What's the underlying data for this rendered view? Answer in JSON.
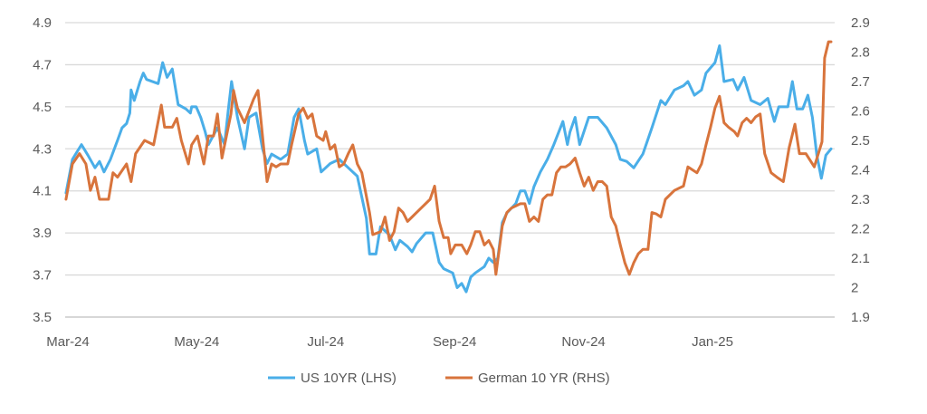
{
  "chart_data": {
    "type": "line",
    "title": "",
    "xlabel": "",
    "x_units": "months since Mar-24",
    "x_tick_labels": [
      "Mar-24",
      "May-24",
      "Jul-24",
      "Sep-24",
      "Nov-24",
      "Jan-25"
    ],
    "x_tick_positions": [
      0,
      2,
      4,
      6,
      8,
      10
    ],
    "y_left": {
      "ticks": [
        "3.5",
        "3.7",
        "3.9",
        "4.1",
        "4.3",
        "4.5",
        "4.7",
        "4.9"
      ],
      "ylim": [
        3.5,
        4.9
      ]
    },
    "y_right": {
      "ticks": [
        "1.9",
        "2",
        "2.1",
        "2.2",
        "2.3",
        "2.4",
        "2.5",
        "2.6",
        "2.7",
        "2.8",
        "2.9"
      ],
      "ylim": [
        1.9,
        2.9
      ]
    },
    "grid": true,
    "legend_position": "bottom",
    "series": [
      {
        "name": "US 10YR (LHS)",
        "axis": "left",
        "color": "#4AAEE8",
        "points": [
          [
            -0.03,
            4.09
          ],
          [
            0.07,
            4.25
          ],
          [
            0.21,
            4.32
          ],
          [
            0.31,
            4.27
          ],
          [
            0.42,
            4.21
          ],
          [
            0.49,
            4.24
          ],
          [
            0.56,
            4.19
          ],
          [
            0.66,
            4.25
          ],
          [
            0.77,
            4.34
          ],
          [
            0.84,
            4.4
          ],
          [
            0.91,
            4.42
          ],
          [
            0.96,
            4.47
          ],
          [
            0.98,
            4.58
          ],
          [
            1.03,
            4.53
          ],
          [
            1.12,
            4.62
          ],
          [
            1.17,
            4.66
          ],
          [
            1.22,
            4.63
          ],
          [
            1.4,
            4.61
          ],
          [
            1.47,
            4.71
          ],
          [
            1.54,
            4.64
          ],
          [
            1.62,
            4.68
          ],
          [
            1.71,
            4.51
          ],
          [
            1.83,
            4.49
          ],
          [
            1.9,
            4.47
          ],
          [
            1.92,
            4.5
          ],
          [
            1.99,
            4.5
          ],
          [
            2.06,
            4.45
          ],
          [
            2.13,
            4.38
          ],
          [
            2.18,
            4.32
          ],
          [
            2.32,
            4.4
          ],
          [
            2.43,
            4.32
          ],
          [
            2.49,
            4.49
          ],
          [
            2.54,
            4.62
          ],
          [
            2.63,
            4.45
          ],
          [
            2.74,
            4.3
          ],
          [
            2.81,
            4.45
          ],
          [
            2.92,
            4.47
          ],
          [
            3.02,
            4.3
          ],
          [
            3.09,
            4.23
          ],
          [
            3.16,
            4.275
          ],
          [
            3.3,
            4.25
          ],
          [
            3.41,
            4.275
          ],
          [
            3.51,
            4.45
          ],
          [
            3.58,
            4.49
          ],
          [
            3.67,
            4.34
          ],
          [
            3.72,
            4.275
          ],
          [
            3.86,
            4.3
          ],
          [
            3.93,
            4.19
          ],
          [
            4.07,
            4.23
          ],
          [
            4.21,
            4.25
          ],
          [
            4.35,
            4.21
          ],
          [
            4.49,
            4.17
          ],
          [
            4.63,
            3.97
          ],
          [
            4.68,
            3.8
          ],
          [
            4.78,
            3.8
          ],
          [
            4.85,
            3.93
          ],
          [
            4.99,
            3.89
          ],
          [
            5.08,
            3.82
          ],
          [
            5.15,
            3.865
          ],
          [
            5.27,
            3.835
          ],
          [
            5.34,
            3.81
          ],
          [
            5.41,
            3.85
          ],
          [
            5.55,
            3.9
          ],
          [
            5.66,
            3.9
          ],
          [
            5.76,
            3.76
          ],
          [
            5.83,
            3.73
          ],
          [
            5.97,
            3.71
          ],
          [
            6.04,
            3.64
          ],
          [
            6.11,
            3.66
          ],
          [
            6.18,
            3.62
          ],
          [
            6.25,
            3.69
          ],
          [
            6.32,
            3.71
          ],
          [
            6.46,
            3.74
          ],
          [
            6.53,
            3.78
          ],
          [
            6.6,
            3.76
          ],
          [
            6.67,
            3.78
          ],
          [
            6.74,
            3.95
          ],
          [
            6.81,
            3.995
          ],
          [
            6.95,
            4.04
          ],
          [
            7.02,
            4.1
          ],
          [
            7.09,
            4.1
          ],
          [
            7.16,
            4.04
          ],
          [
            7.23,
            4.12
          ],
          [
            7.33,
            4.19
          ],
          [
            7.44,
            4.25
          ],
          [
            7.54,
            4.32
          ],
          [
            7.68,
            4.43
          ],
          [
            7.75,
            4.32
          ],
          [
            7.79,
            4.38
          ],
          [
            7.87,
            4.45
          ],
          [
            7.94,
            4.32
          ],
          [
            8.08,
            4.45
          ],
          [
            8.22,
            4.45
          ],
          [
            8.36,
            4.4
          ],
          [
            8.5,
            4.32
          ],
          [
            8.57,
            4.25
          ],
          [
            8.67,
            4.24
          ],
          [
            8.78,
            4.21
          ],
          [
            8.92,
            4.275
          ],
          [
            9.06,
            4.4
          ],
          [
            9.2,
            4.53
          ],
          [
            9.27,
            4.51
          ],
          [
            9.41,
            4.58
          ],
          [
            9.55,
            4.6
          ],
          [
            9.62,
            4.62
          ],
          [
            9.72,
            4.555
          ],
          [
            9.83,
            4.58
          ],
          [
            9.9,
            4.66
          ],
          [
            10.04,
            4.71
          ],
          [
            10.11,
            4.79
          ],
          [
            10.18,
            4.62
          ],
          [
            10.32,
            4.63
          ],
          [
            10.39,
            4.58
          ],
          [
            10.49,
            4.64
          ],
          [
            10.6,
            4.53
          ],
          [
            10.74,
            4.51
          ],
          [
            10.86,
            4.54
          ],
          [
            10.96,
            4.43
          ],
          [
            11.03,
            4.5
          ],
          [
            11.17,
            4.5
          ],
          [
            11.24,
            4.62
          ],
          [
            11.31,
            4.49
          ],
          [
            11.4,
            4.49
          ],
          [
            11.48,
            4.555
          ],
          [
            11.55,
            4.45
          ],
          [
            11.62,
            4.27
          ],
          [
            11.69,
            4.16
          ],
          [
            11.76,
            4.27
          ],
          [
            11.84,
            4.3
          ]
        ]
      },
      {
        "name": "German 10 YR (RHS)",
        "axis": "right",
        "color": "#D8743C",
        "points": [
          [
            -0.03,
            2.3
          ],
          [
            0.07,
            2.42
          ],
          [
            0.18,
            2.455
          ],
          [
            0.28,
            2.42
          ],
          [
            0.35,
            2.33
          ],
          [
            0.42,
            2.375
          ],
          [
            0.49,
            2.3
          ],
          [
            0.63,
            2.3
          ],
          [
            0.7,
            2.39
          ],
          [
            0.77,
            2.375
          ],
          [
            0.91,
            2.42
          ],
          [
            0.98,
            2.36
          ],
          [
            1.05,
            2.455
          ],
          [
            1.19,
            2.5
          ],
          [
            1.33,
            2.485
          ],
          [
            1.45,
            2.62
          ],
          [
            1.5,
            2.545
          ],
          [
            1.62,
            2.545
          ],
          [
            1.69,
            2.575
          ],
          [
            1.76,
            2.5
          ],
          [
            1.87,
            2.42
          ],
          [
            1.92,
            2.485
          ],
          [
            2.01,
            2.515
          ],
          [
            2.11,
            2.42
          ],
          [
            2.18,
            2.515
          ],
          [
            2.26,
            2.515
          ],
          [
            2.32,
            2.59
          ],
          [
            2.39,
            2.44
          ],
          [
            2.53,
            2.59
          ],
          [
            2.57,
            2.67
          ],
          [
            2.63,
            2.61
          ],
          [
            2.74,
            2.56
          ],
          [
            2.88,
            2.64
          ],
          [
            2.95,
            2.67
          ],
          [
            3.09,
            2.36
          ],
          [
            3.16,
            2.42
          ],
          [
            3.23,
            2.41
          ],
          [
            3.3,
            2.42
          ],
          [
            3.41,
            2.42
          ],
          [
            3.47,
            2.485
          ],
          [
            3.58,
            2.59
          ],
          [
            3.65,
            2.61
          ],
          [
            3.72,
            2.575
          ],
          [
            3.79,
            2.59
          ],
          [
            3.86,
            2.515
          ],
          [
            3.96,
            2.5
          ],
          [
            4.0,
            2.53
          ],
          [
            4.07,
            2.47
          ],
          [
            4.14,
            2.485
          ],
          [
            4.21,
            2.41
          ],
          [
            4.28,
            2.42
          ],
          [
            4.35,
            2.455
          ],
          [
            4.42,
            2.485
          ],
          [
            4.49,
            2.42
          ],
          [
            4.56,
            2.39
          ],
          [
            4.68,
            2.255
          ],
          [
            4.73,
            2.18
          ],
          [
            4.85,
            2.19
          ],
          [
            4.92,
            2.24
          ],
          [
            4.99,
            2.16
          ],
          [
            5.06,
            2.19
          ],
          [
            5.13,
            2.27
          ],
          [
            5.2,
            2.255
          ],
          [
            5.27,
            2.225
          ],
          [
            5.34,
            2.24
          ],
          [
            5.41,
            2.255
          ],
          [
            5.48,
            2.27
          ],
          [
            5.62,
            2.3
          ],
          [
            5.69,
            2.345
          ],
          [
            5.76,
            2.225
          ],
          [
            5.83,
            2.17
          ],
          [
            5.9,
            2.17
          ],
          [
            5.94,
            2.115
          ],
          [
            6.01,
            2.145
          ],
          [
            6.11,
            2.145
          ],
          [
            6.19,
            2.115
          ],
          [
            6.25,
            2.145
          ],
          [
            6.32,
            2.19
          ],
          [
            6.39,
            2.19
          ],
          [
            6.46,
            2.145
          ],
          [
            6.53,
            2.16
          ],
          [
            6.6,
            2.13
          ],
          [
            6.64,
            2.045
          ],
          [
            6.74,
            2.21
          ],
          [
            6.81,
            2.255
          ],
          [
            6.88,
            2.27
          ],
          [
            7.02,
            2.285
          ],
          [
            7.09,
            2.285
          ],
          [
            7.16,
            2.225
          ],
          [
            7.23,
            2.24
          ],
          [
            7.3,
            2.225
          ],
          [
            7.37,
            2.3
          ],
          [
            7.44,
            2.315
          ],
          [
            7.51,
            2.315
          ],
          [
            7.58,
            2.39
          ],
          [
            7.65,
            2.41
          ],
          [
            7.72,
            2.41
          ],
          [
            7.79,
            2.42
          ],
          [
            7.87,
            2.44
          ],
          [
            7.94,
            2.39
          ],
          [
            8.01,
            2.345
          ],
          [
            8.08,
            2.375
          ],
          [
            8.15,
            2.33
          ],
          [
            8.22,
            2.36
          ],
          [
            8.29,
            2.36
          ],
          [
            8.36,
            2.345
          ],
          [
            8.43,
            2.24
          ],
          [
            8.5,
            2.21
          ],
          [
            8.57,
            2.145
          ],
          [
            8.64,
            2.085
          ],
          [
            8.71,
            2.045
          ],
          [
            8.78,
            2.085
          ],
          [
            8.85,
            2.115
          ],
          [
            8.92,
            2.13
          ],
          [
            9.0,
            2.13
          ],
          [
            9.06,
            2.255
          ],
          [
            9.13,
            2.25
          ],
          [
            9.2,
            2.24
          ],
          [
            9.27,
            2.3
          ],
          [
            9.34,
            2.315
          ],
          [
            9.41,
            2.33
          ],
          [
            9.55,
            2.345
          ],
          [
            9.62,
            2.41
          ],
          [
            9.76,
            2.39
          ],
          [
            9.83,
            2.42
          ],
          [
            9.9,
            2.485
          ],
          [
            9.97,
            2.545
          ],
          [
            10.04,
            2.61
          ],
          [
            10.11,
            2.65
          ],
          [
            10.18,
            2.56
          ],
          [
            10.25,
            2.545
          ],
          [
            10.34,
            2.53
          ],
          [
            10.39,
            2.515
          ],
          [
            10.46,
            2.56
          ],
          [
            10.53,
            2.575
          ],
          [
            10.6,
            2.56
          ],
          [
            10.67,
            2.58
          ],
          [
            10.74,
            2.59
          ],
          [
            10.81,
            2.455
          ],
          [
            10.91,
            2.39
          ],
          [
            11.0,
            2.375
          ],
          [
            11.1,
            2.36
          ],
          [
            11.19,
            2.475
          ],
          [
            11.28,
            2.555
          ],
          [
            11.35,
            2.455
          ],
          [
            11.45,
            2.455
          ],
          [
            11.58,
            2.41
          ],
          [
            11.7,
            2.495
          ],
          [
            11.74,
            2.78
          ],
          [
            11.8,
            2.835
          ],
          [
            11.84,
            2.835
          ]
        ]
      }
    ]
  }
}
